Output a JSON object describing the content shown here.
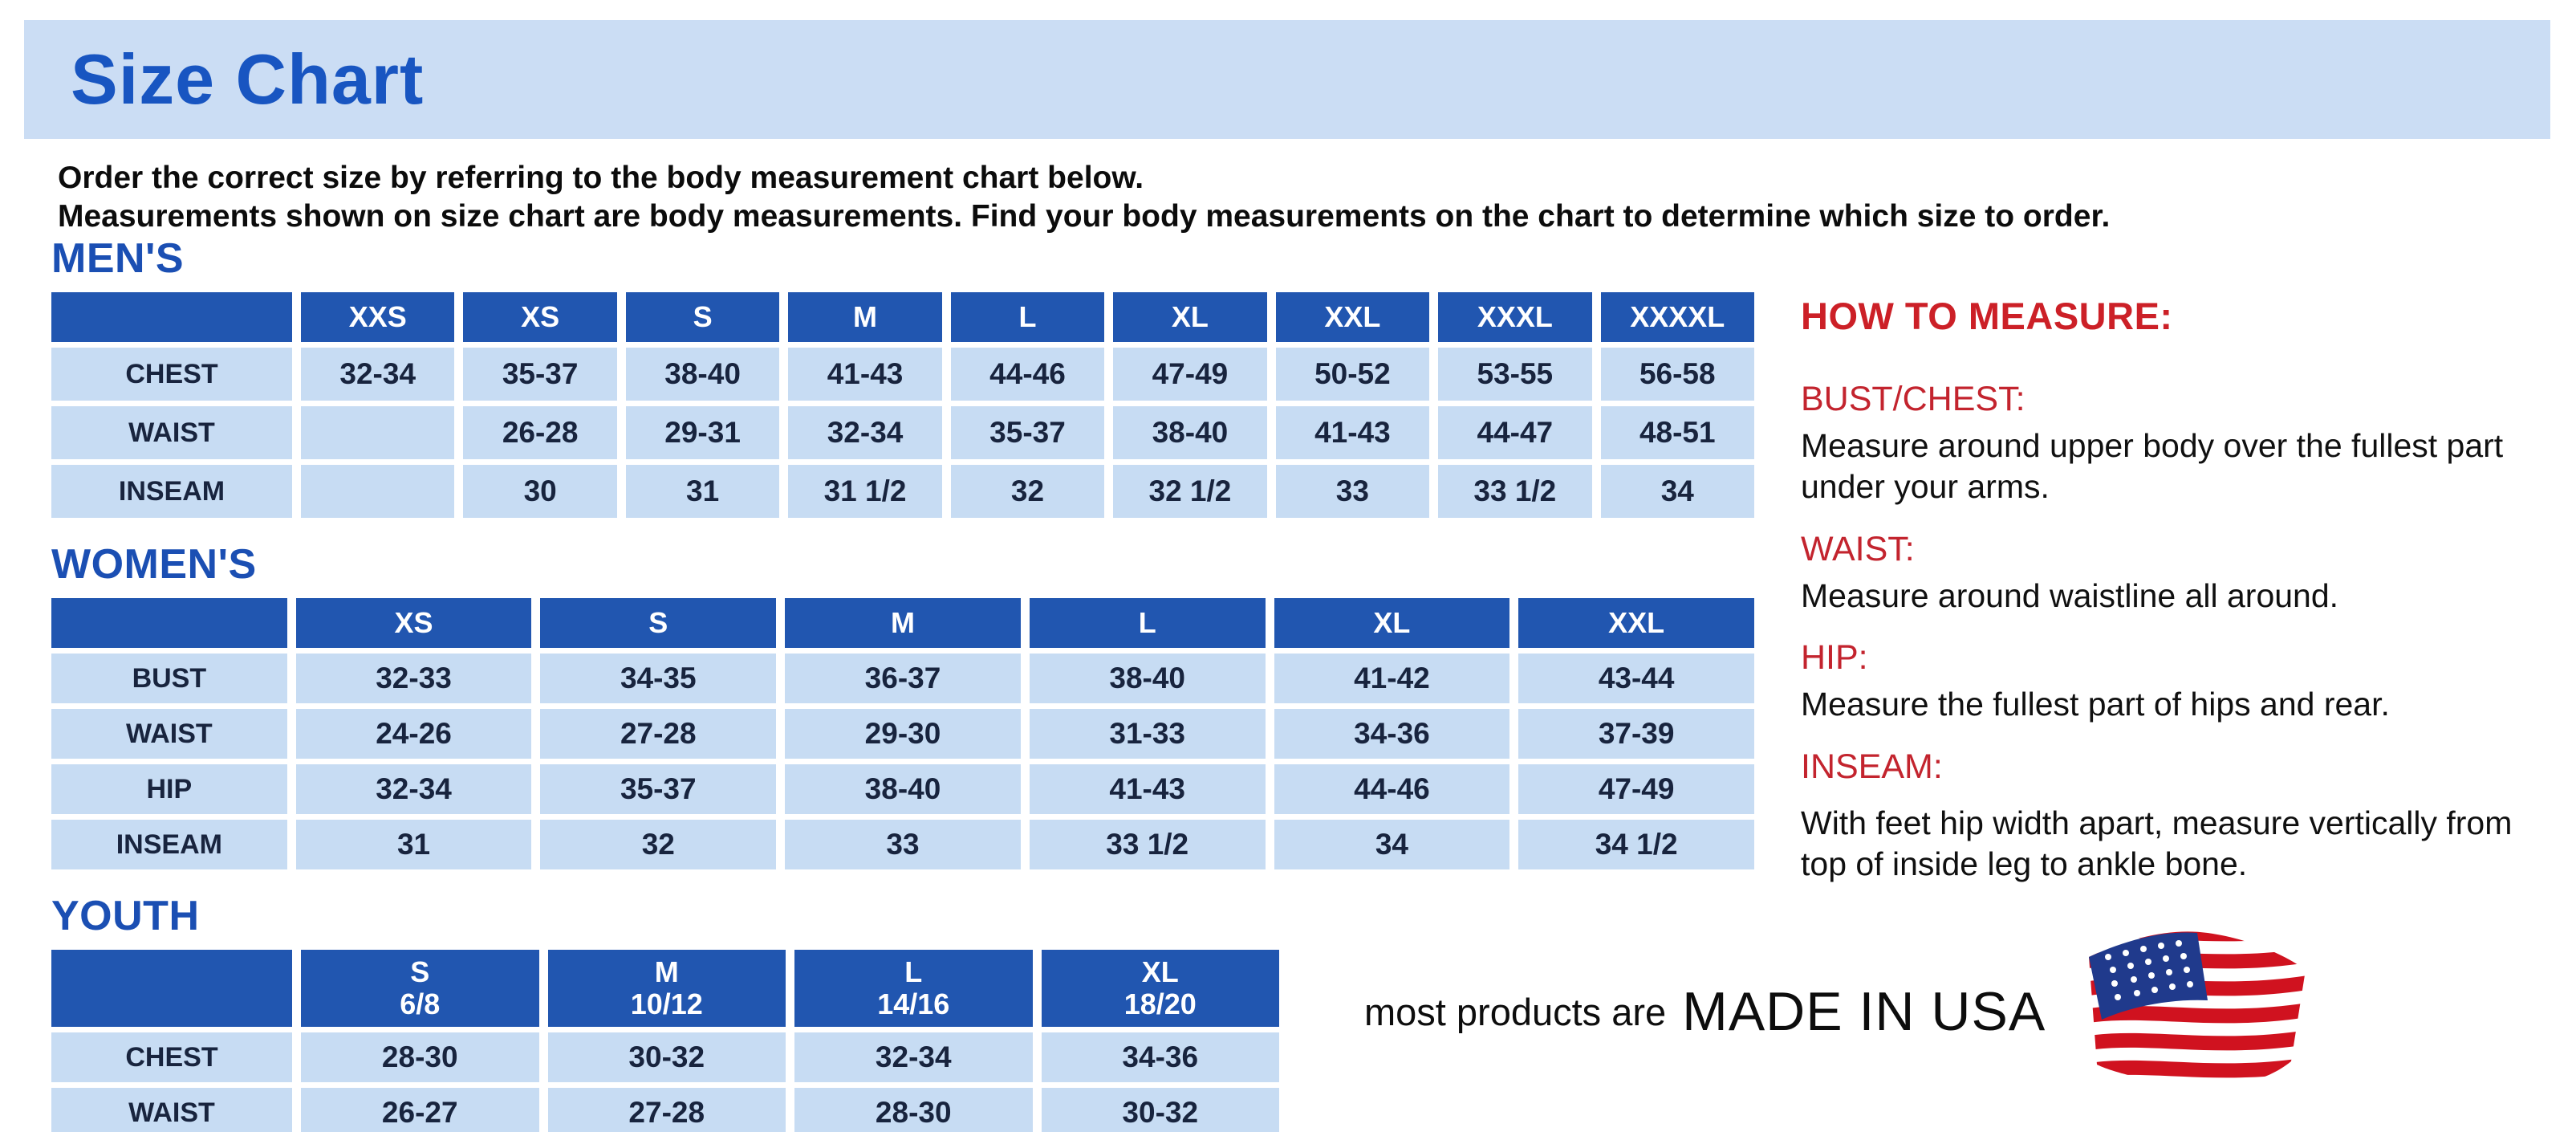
{
  "page": {
    "title": "Size Chart",
    "intro_line1": "Order the correct size by referring to the body measurement chart below.",
    "intro_line2": "Measurements shown on size chart are body measurements.  Find your body measurements on the chart to determine which size to order."
  },
  "tables": {
    "mens": {
      "heading": "MEN'S",
      "columns": [
        "XXS",
        "XS",
        "S",
        "M",
        "L",
        "XL",
        "XXL",
        "XXXL",
        "XXXXL"
      ],
      "rows": [
        {
          "label": "CHEST",
          "values": [
            "32-34",
            "35-37",
            "38-40",
            "41-43",
            "44-46",
            "47-49",
            "50-52",
            "53-55",
            "56-58"
          ]
        },
        {
          "label": "WAIST",
          "values": [
            "",
            "26-28",
            "29-31",
            "32-34",
            "35-37",
            "38-40",
            "41-43",
            "44-47",
            "48-51"
          ]
        },
        {
          "label": "INSEAM",
          "values": [
            "",
            "30",
            "31",
            "31 1/2",
            "32",
            "32 1/2",
            "33",
            "33 1/2",
            "34"
          ]
        }
      ]
    },
    "womens": {
      "heading": "WOMEN'S",
      "columns": [
        "XS",
        "S",
        "M",
        "L",
        "XL",
        "XXL"
      ],
      "rows": [
        {
          "label": "BUST",
          "values": [
            "32-33",
            "34-35",
            "36-37",
            "38-40",
            "41-42",
            "43-44"
          ]
        },
        {
          "label": "WAIST",
          "values": [
            "24-26",
            "27-28",
            "29-30",
            "31-33",
            "34-36",
            "37-39"
          ]
        },
        {
          "label": "HIP",
          "values": [
            "32-34",
            "35-37",
            "38-40",
            "41-43",
            "44-46",
            "47-49"
          ]
        },
        {
          "label": "INSEAM",
          "values": [
            "31",
            "32",
            "33",
            "33 1/2",
            "34",
            "34 1/2"
          ]
        }
      ]
    },
    "youth": {
      "heading": "YOUTH",
      "columns": [
        {
          "size": "S",
          "range": "6/8"
        },
        {
          "size": "M",
          "range": "10/12"
        },
        {
          "size": "L",
          "range": "14/16"
        },
        {
          "size": "XL",
          "range": "18/20"
        }
      ],
      "rows": [
        {
          "label": "CHEST",
          "values": [
            "28-30",
            "30-32",
            "32-34",
            "34-36"
          ]
        },
        {
          "label": "WAIST",
          "values": [
            "26-27",
            "27-28",
            "28-30",
            "30-32"
          ]
        }
      ]
    }
  },
  "how_to_measure": {
    "heading": "HOW TO MEASURE:",
    "sections": [
      {
        "label": "BUST/CHEST:",
        "text": "Measure around upper body over the fullest part under your arms."
      },
      {
        "label": "WAIST:",
        "text": "Measure around waistline all around."
      },
      {
        "label": "HIP:",
        "text": "Measure the fullest part of hips and rear."
      },
      {
        "label": "INSEAM:",
        "text": "With feet hip width apart, measure vertically from top of inside leg to ankle bone."
      }
    ]
  },
  "footer": {
    "made_in_prefix": "most products are",
    "made_in_main": "MADE IN USA",
    "flag_icon": "us-flag-icon"
  },
  "colors": {
    "title_band_bg": "#cbddf4",
    "title_blue": "#1855c1",
    "heading_blue": "#1b4fb3",
    "table_header_blue": "#2156b0",
    "table_cell_blue": "#c7dcf3",
    "accent_red": "#cc2027",
    "flag_red": "#d0121f",
    "flag_navy": "#203a8c"
  }
}
